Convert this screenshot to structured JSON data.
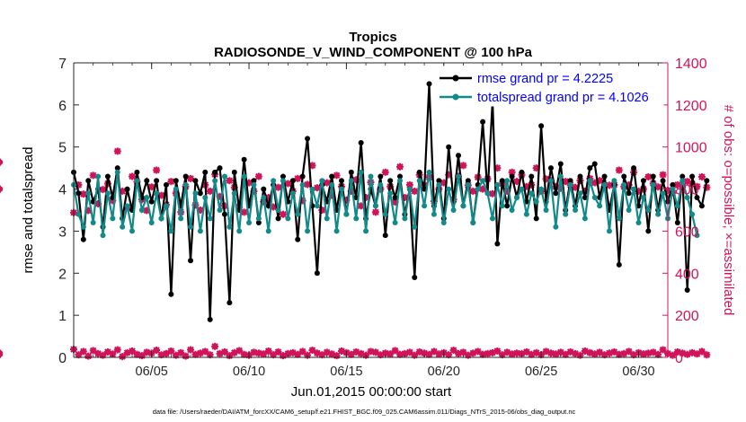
{
  "chart_data": {
    "type": "line",
    "title": "Tropics",
    "subtitle": "RADIOSONDE_V_WIND_COMPONENT @ 100 hPa",
    "xlabel": "Jun.01,2015 00:00:00 start",
    "ylabel": "rmse and totalspread",
    "y2label": "# of obs: o=possible; ×=assimilated",
    "footnote": "data file: /Users/raeder/DAI/ATM_forcXX/CAM6_setup/f.e21.FHIST_BGC.f09_025.CAM6assim.011/Diags_NTrS_2015-06/obs_diag_output.nc",
    "x_range": [
      1,
      31.5
    ],
    "ylim": [
      0,
      7
    ],
    "y2lim": [
      0,
      1400
    ],
    "x_ticks": [
      5,
      10,
      15,
      20,
      25,
      30
    ],
    "x_tick_labels": [
      "06/05",
      "06/10",
      "06/15",
      "06/20",
      "06/25",
      "06/30"
    ],
    "y_ticks": [
      0,
      1,
      2,
      3,
      4,
      5,
      6,
      7
    ],
    "y_tick_labels": [
      "0",
      "1",
      "2",
      "3",
      "4",
      "5",
      "6",
      "7"
    ],
    "y2_ticks": [
      0,
      200,
      400,
      600,
      800,
      1000,
      1200,
      1400
    ],
    "y2_tick_labels": [
      "0",
      "200",
      "400",
      "600",
      "800",
      "1000",
      "1200",
      "1400"
    ],
    "colors": {
      "rmse": "#000000",
      "spread": "#138a8a",
      "obs": "#d1145a",
      "legend_text": "#0000ff",
      "axis2": "#d1145a"
    },
    "legend": [
      {
        "name": "rmse",
        "label": "rmse grand pr = 4.2225"
      },
      {
        "name": "spread",
        "label": "totalspread grand pr = 4.1026"
      }
    ],
    "legend_position": "top-right",
    "rmse": [
      4.4,
      3.9,
      2.8,
      4.2,
      3.7,
      4.0,
      3.1,
      4.3,
      3.8,
      4.5,
      3.3,
      4.0,
      3.5,
      4.4,
      3.8,
      4.2,
      3.7,
      4.2,
      3.3,
      4.1,
      1.5,
      4.2,
      3.6,
      4.3,
      2.3,
      4.2,
      3.9,
      4.4,
      0.9,
      4.4,
      4.5,
      3.4,
      1.3,
      4.4,
      3.5,
      4.7,
      3.6,
      4.2,
      3.2,
      4.0,
      3.6,
      4.1,
      3.3,
      4.3,
      3.7,
      4.2,
      2.8,
      4.3,
      5.2,
      3.6,
      2.0,
      4.1,
      3.7,
      4.3,
      3.5,
      4.2,
      3.4,
      4.4,
      3.8,
      5.1,
      3.3,
      4.0,
      3.6,
      4.3,
      2.9,
      4.2,
      3.8,
      4.3,
      3.4,
      4.0,
      1.9,
      4.4,
      4.0,
      6.5,
      3.6,
      4.2,
      3.3,
      5.0,
      3.7,
      4.8,
      3.6,
      4.2,
      3.2,
      4.1,
      5.6,
      3.9,
      6.1,
      2.7,
      4.2,
      3.6,
      4.3,
      3.8,
      4.4,
      3.7,
      4.3,
      3.3,
      5.5,
      3.7,
      4.5,
      3.9,
      4.6,
      3.5,
      4.2,
      3.6,
      4.3,
      3.8,
      4.5,
      4.6,
      3.8,
      4.3,
      3.5,
      4.1,
      2.2,
      4.3,
      3.9,
      4.5,
      3.6,
      4.2,
      3.0,
      4.3,
      3.5,
      4.2,
      3.7,
      4.1,
      3.2,
      4.3,
      1.6,
      4.3,
      3.8,
      3.6,
      4.2
    ],
    "spread": [
      4.1,
      3.4,
      3.1,
      3.9,
      3.2,
      4.3,
      2.9,
      3.9,
      3.3,
      4.4,
      3.1,
      3.6,
      3.0,
      4.2,
      3.5,
      3.8,
      3.2,
      3.9,
      3.3,
      3.6,
      3.0,
      4.0,
      3.3,
      4.1,
      3.1,
      3.9,
      3.0,
      3.8,
      3.3,
      4.2,
      3.5,
      4.3,
      3.1,
      3.9,
      3.0,
      4.3,
      3.2,
      4.1,
      3.3,
      3.8,
      3.0,
      4.2,
      3.5,
      4.2,
      3.3,
      3.9,
      3.4,
      4.1,
      3.0,
      4.0,
      3.6,
      4.2,
      3.3,
      4.1,
      3.0,
      4.0,
      3.4,
      4.2,
      3.3,
      4.4,
      3.0,
      4.3,
      3.6,
      4.1,
      3.4,
      3.9,
      3.2,
      4.2,
      3.3,
      4.0,
      3.1,
      4.2,
      3.6,
      4.4,
      3.4,
      4.1,
      3.2,
      4.0,
      3.5,
      4.3,
      3.6,
      4.1,
      3.2,
      4.0,
      4.2,
      3.9,
      3.3,
      4.1,
      3.6,
      4.2,
      3.5,
      3.8,
      4.0,
      3.4,
      3.9,
      3.7,
      4.0,
      3.5,
      4.2,
      3.1,
      4.3,
      3.4,
      4.1,
      3.5,
      3.9,
      3.3,
      4.2,
      3.8,
      3.6,
      4.1,
      3.0,
      4.2,
      3.3,
      4.1,
      3.5,
      4.0,
      3.2,
      3.8,
      3.5,
      4.1,
      3.4,
      3.9,
      3.3,
      4.0,
      3.6,
      4.2,
      3.8,
      3.4,
      2.9
    ],
    "obs_possible": [
      688,
      820,
      776,
      698,
      865,
      730,
      798,
      826,
      745,
      980,
      790,
      712,
      860,
      835,
      750,
      698,
      810,
      890,
      770,
      725,
      836,
      780,
      690,
      812,
      850,
      724,
      700,
      820,
      790,
      870,
      765,
      720,
      840,
      808,
      714,
      690,
      830,
      790,
      860,
      740,
      760,
      715,
      808,
      680,
      826,
      790,
      850,
      745,
      822,
      912,
      806,
      700,
      830,
      770,
      865,
      812,
      748,
      790,
      844,
      720,
      760,
      832,
      690,
      800,
      880,
      812,
      738,
      906,
      760,
      820,
      790,
      868,
      818,
      856,
      742,
      800,
      830,
      868,
      750,
      860,
      912,
      818,
      790,
      856,
      800,
      848,
      778,
      900,
      826,
      790,
      880,
      836,
      868,
      812,
      820,
      900,
      790,
      848,
      840,
      812,
      804,
      836,
      820,
      808,
      840,
      790,
      850,
      830,
      840,
      812,
      818,
      820,
      890,
      812,
      820,
      880,
      790,
      800,
      858,
      826,
      810,
      868,
      794,
      782,
      820,
      810,
      836,
      826,
      812,
      858,
      808,
      928,
      800
    ],
    "obs_assimilated": [
      38,
      12,
      28,
      6,
      32,
      18,
      10,
      26,
      16,
      36,
      4,
      22,
      30,
      14,
      8,
      24,
      20,
      34,
      12,
      18,
      30,
      10,
      22,
      6,
      36,
      14,
      20,
      28,
      12,
      52,
      18,
      26,
      8,
      22,
      32,
      14,
      10,
      24,
      20,
      16,
      30,
      12,
      26,
      8,
      18,
      22,
      14,
      28,
      10,
      34,
      20,
      12,
      24,
      16,
      8,
      30,
      22,
      14,
      26,
      18,
      10,
      28,
      24,
      12,
      20,
      16,
      32,
      14,
      18,
      24,
      10,
      26,
      20,
      14,
      28,
      16,
      22,
      12,
      34,
      18,
      24,
      10,
      20,
      28,
      14,
      18,
      22,
      30,
      12,
      24,
      16,
      20,
      18,
      26,
      14,
      22,
      12,
      28,
      20,
      16,
      24,
      14,
      26,
      18,
      10,
      30,
      22,
      16,
      24,
      12,
      20,
      26,
      14,
      18,
      28,
      12,
      22,
      16,
      20,
      24,
      14,
      36,
      18,
      10,
      26,
      20,
      14,
      22,
      16,
      28,
      12,
      20,
      14
    ]
  }
}
